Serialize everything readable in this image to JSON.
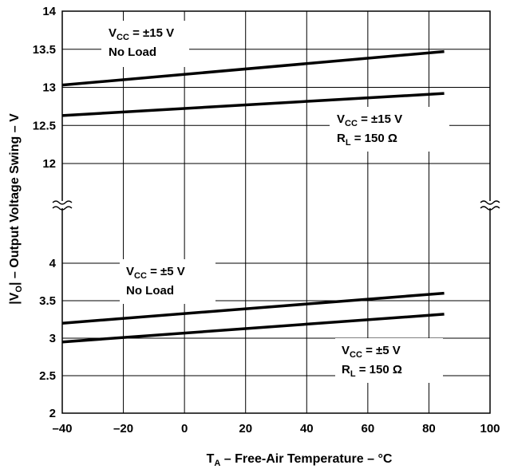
{
  "chart_data": {
    "type": "line",
    "xlabel": {
      "main": "T",
      "sub": "A",
      "rest": " – Free-Air Temperature – °C"
    },
    "ylabel": {
      "main": "V",
      "sub": "O",
      "rest": " – Output Voltage Swing – V"
    },
    "xlim": [
      -40,
      100
    ],
    "x_ticks": [
      "–40",
      "–20",
      "0",
      "20",
      "40",
      "60",
      "80",
      "100"
    ],
    "x_tick_values": [
      -40,
      -20,
      0,
      20,
      40,
      60,
      80,
      100
    ],
    "y_axis_break": true,
    "y_upper_ticks": [
      "14",
      "13.5",
      "13",
      "12.5",
      "12"
    ],
    "y_upper_tick_values": [
      14,
      13.5,
      13,
      12.5,
      12
    ],
    "y_lower_ticks": [
      "4",
      "3.5",
      "3",
      "2.5",
      "2"
    ],
    "y_lower_tick_values": [
      4,
      3.5,
      3,
      2.5,
      2
    ],
    "grid": true,
    "series": [
      {
        "segment": "upper",
        "x": [
          -40,
          85
        ],
        "y": [
          13.03,
          13.47
        ]
      },
      {
        "segment": "upper",
        "x": [
          -40,
          85
        ],
        "y": [
          12.63,
          12.92
        ]
      },
      {
        "segment": "lower",
        "x": [
          -40,
          85
        ],
        "y": [
          3.2,
          3.6
        ]
      },
      {
        "segment": "lower",
        "x": [
          -40,
          85
        ],
        "y": [
          2.95,
          3.32
        ]
      }
    ],
    "annotations": [
      {
        "line1": {
          "main": "V",
          "sub": "CC",
          "rest": " = ±15 V"
        },
        "line2": "No Load"
      },
      {
        "line1": {
          "main": "V",
          "sub": "CC",
          "rest": " = ±15 V"
        },
        "line2": {
          "main": "R",
          "sub": "L",
          "rest": " = 150 Ω"
        }
      },
      {
        "line1": {
          "main": "V",
          "sub": "CC",
          "rest": " = ±5 V"
        },
        "line2": "No Load"
      },
      {
        "line1": {
          "main": "V",
          "sub": "CC",
          "rest": " = ±5 V"
        },
        "line2": {
          "main": "R",
          "sub": "L",
          "rest": " = 150 Ω"
        }
      }
    ]
  }
}
